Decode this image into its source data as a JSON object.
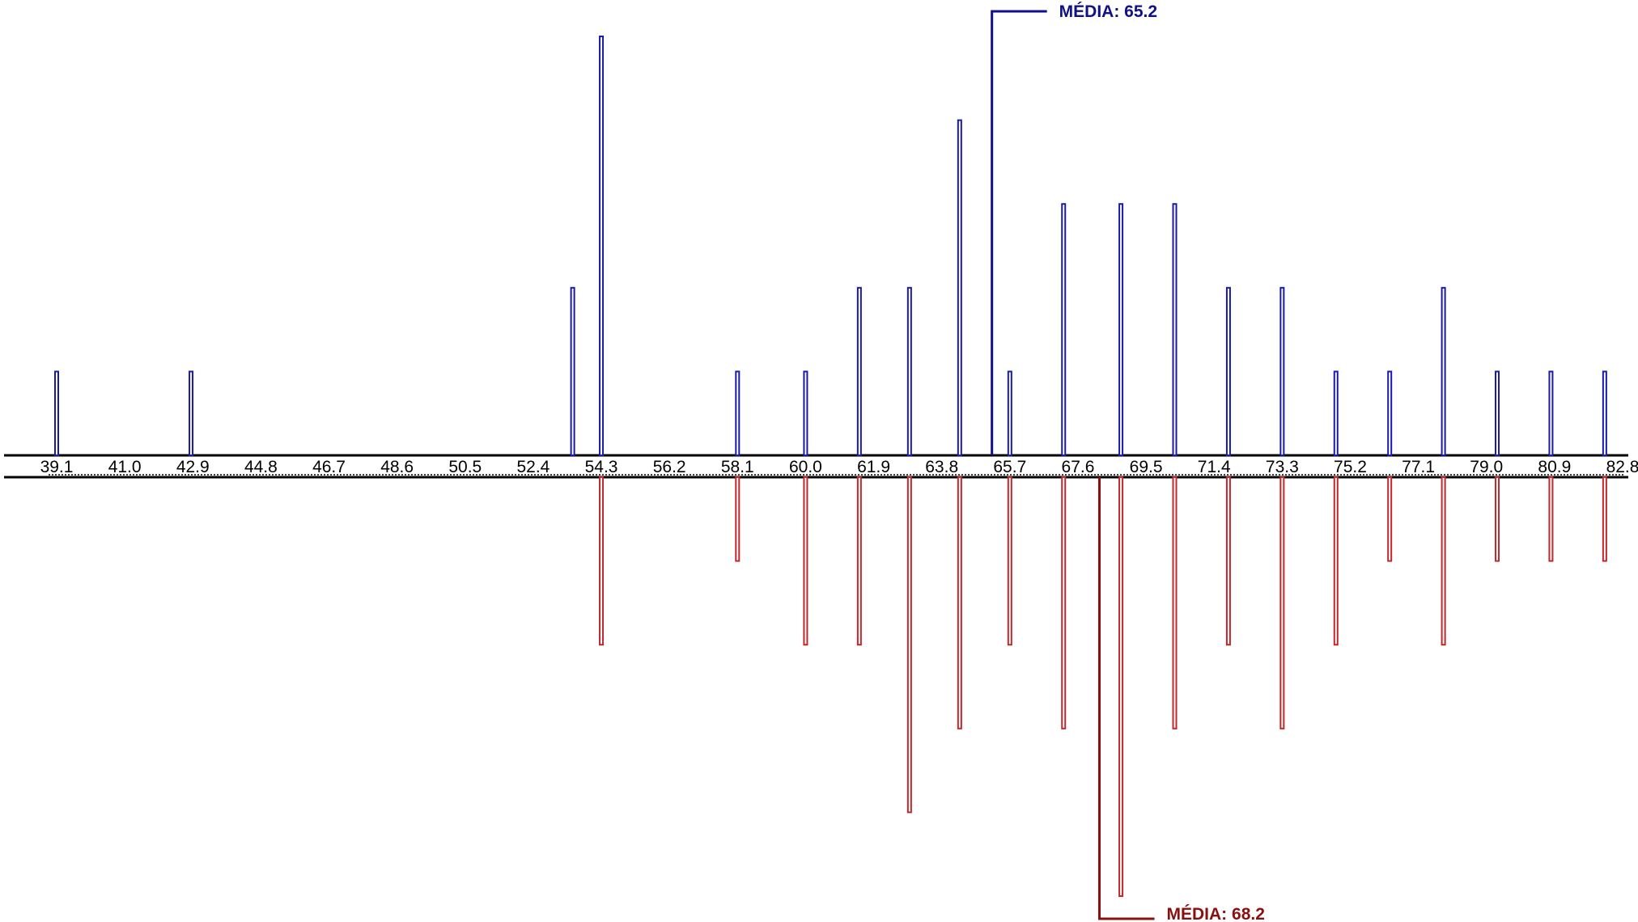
{
  "chart_data": {
    "type": "bar",
    "title": "",
    "xlabel": "",
    "ylabel": "",
    "xlim": [
      39.1,
      82.8
    ],
    "tick_labels": [
      "39.1",
      "41.0",
      "42.9",
      "44.8",
      "46.7",
      "48.6",
      "50.5",
      "52.4",
      "54.3",
      "56.2",
      "58.1",
      "60.0",
      "61.9",
      "63.8",
      "65.7",
      "67.6",
      "69.5",
      "71.4",
      "73.3",
      "75.2",
      "77.1",
      "79.0",
      "80.9",
      "82.8"
    ],
    "grid": false,
    "legend": "none",
    "series": [
      {
        "color": "#1a1aaa",
        "direction": "up",
        "points": [
          {
            "x": 39.1,
            "count": 1
          },
          {
            "x": 42.85,
            "count": 1
          },
          {
            "x": 53.5,
            "count": 2
          },
          {
            "x": 54.3,
            "count": 5
          },
          {
            "x": 58.1,
            "count": 1
          },
          {
            "x": 60.0,
            "count": 1
          },
          {
            "x": 61.5,
            "count": 2
          },
          {
            "x": 62.9,
            "count": 2
          },
          {
            "x": 64.3,
            "count": 4
          },
          {
            "x": 65.7,
            "count": 1
          },
          {
            "x": 67.2,
            "count": 3
          },
          {
            "x": 68.8,
            "count": 3
          },
          {
            "x": 70.3,
            "count": 3
          },
          {
            "x": 71.8,
            "count": 2
          },
          {
            "x": 73.3,
            "count": 2
          },
          {
            "x": 74.8,
            "count": 1
          },
          {
            "x": 76.3,
            "count": 1
          },
          {
            "x": 77.8,
            "count": 2
          },
          {
            "x": 79.3,
            "count": 1
          },
          {
            "x": 80.8,
            "count": 1
          },
          {
            "x": 82.3,
            "count": 1
          }
        ],
        "mean": {
          "value": 65.2,
          "label": "MÉDIA: 65.2"
        }
      },
      {
        "color": "#c0282c",
        "direction": "down",
        "points": [
          {
            "x": 54.3,
            "count": 2
          },
          {
            "x": 58.1,
            "count": 1
          },
          {
            "x": 60.0,
            "count": 2
          },
          {
            "x": 61.5,
            "count": 2
          },
          {
            "x": 62.9,
            "count": 4
          },
          {
            "x": 64.3,
            "count": 3
          },
          {
            "x": 65.7,
            "count": 2
          },
          {
            "x": 67.2,
            "count": 3
          },
          {
            "x": 68.8,
            "count": 5
          },
          {
            "x": 70.3,
            "count": 3
          },
          {
            "x": 71.8,
            "count": 2
          },
          {
            "x": 73.3,
            "count": 3
          },
          {
            "x": 74.8,
            "count": 2
          },
          {
            "x": 76.3,
            "count": 1
          },
          {
            "x": 77.8,
            "count": 2
          },
          {
            "x": 79.3,
            "count": 1
          },
          {
            "x": 80.8,
            "count": 1
          },
          {
            "x": 82.3,
            "count": 1
          }
        ],
        "mean": {
          "value": 68.2,
          "label": "MÉDIA: 68.2"
        }
      }
    ],
    "mean_colors": {
      "top": "#10108a",
      "bottom": "#8a1010"
    }
  }
}
